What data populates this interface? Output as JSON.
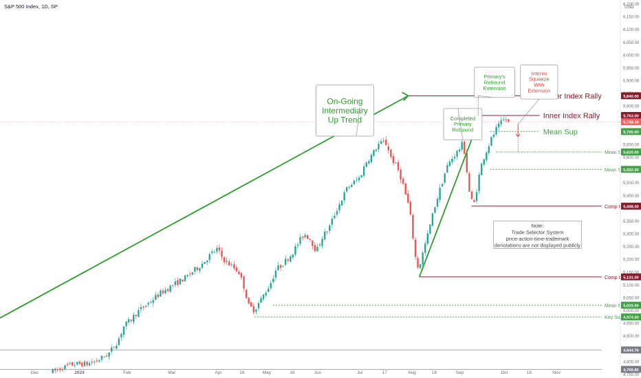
{
  "header": {
    "title": "S&P 500 Index, 1D, SP",
    "currency": "USD"
  },
  "colors": {
    "up": "#26a69a",
    "down": "#ef5350",
    "trend": "#2a9d2a",
    "resistance": "#8b1a2b",
    "support": "#43a047",
    "callout_red": "#e53935",
    "gray_line": "#9e9e9e",
    "current_price": "#f06262"
  },
  "y_axis": {
    "min": 4735,
    "max": 6215,
    "ticks": [
      "6,200.00",
      "6,150.00",
      "6,100.00",
      "6,050.00",
      "6,000.00",
      "5,950.00",
      "5,900.00",
      "5,850.00",
      "5,800.00",
      "5,750.00",
      "5,700.00",
      "5,650.00",
      "5,600.00",
      "5,550.00",
      "5,500.00",
      "5,450.00",
      "5,400.00",
      "5,350.00",
      "5,300.00",
      "5,250.00",
      "5,200.00",
      "5,150.00",
      "5,100.00",
      "5,050.00",
      "5,000.00",
      "4,950.00",
      "4,900.00",
      "4,850.00",
      "4,800.00",
      "4,750.00"
    ]
  },
  "x_axis": {
    "labels": [
      {
        "text": "Dec",
        "x": 0.056
      },
      {
        "text": "2024",
        "x": 0.128,
        "bold": true
      },
      {
        "text": "Feb",
        "x": 0.205
      },
      {
        "text": "Mar",
        "x": 0.277
      },
      {
        "text": "Apr",
        "x": 0.352
      },
      {
        "text": "16",
        "x": 0.39
      },
      {
        "text": "May",
        "x": 0.43
      },
      {
        "text": "16",
        "x": 0.471
      },
      {
        "text": "Jun",
        "x": 0.512
      },
      {
        "text": "Jul",
        "x": 0.58
      },
      {
        "text": "17",
        "x": 0.62
      },
      {
        "text": "Aug",
        "x": 0.664
      },
      {
        "text": "16",
        "x": 0.7
      },
      {
        "text": "Sep",
        "x": 0.741
      },
      {
        "text": "Oct",
        "x": 0.813
      },
      {
        "text": "16",
        "x": 0.853
      },
      {
        "text": "Nov",
        "x": 0.897
      }
    ]
  },
  "chart_data": {
    "type": "candlestick",
    "title": "S&P 500 Index, 1D, SP",
    "x_range": [
      0,
      1
    ],
    "ylim": [
      4735,
      6215
    ],
    "anchors": [
      [
        0.085,
        4760
      ],
      [
        0.1,
        4775
      ],
      [
        0.12,
        4790
      ],
      [
        0.14,
        4790
      ],
      [
        0.155,
        4800
      ],
      [
        0.175,
        4830
      ],
      [
        0.19,
        4880
      ],
      [
        0.2,
        4940
      ],
      [
        0.21,
        4960
      ],
      [
        0.22,
        4990
      ],
      [
        0.24,
        5030
      ],
      [
        0.26,
        5070
      ],
      [
        0.28,
        5100
      ],
      [
        0.3,
        5130
      ],
      [
        0.31,
        5150
      ],
      [
        0.325,
        5180
      ],
      [
        0.34,
        5220
      ],
      [
        0.35,
        5240
      ],
      [
        0.36,
        5200
      ],
      [
        0.37,
        5180
      ],
      [
        0.385,
        5150
      ],
      [
        0.395,
        5080
      ],
      [
        0.4,
        5020
      ],
      [
        0.41,
        5000
      ],
      [
        0.425,
        5060
      ],
      [
        0.435,
        5100
      ],
      [
        0.445,
        5160
      ],
      [
        0.455,
        5180
      ],
      [
        0.47,
        5220
      ],
      [
        0.48,
        5260
      ],
      [
        0.49,
        5300
      ],
      [
        0.5,
        5280
      ],
      [
        0.51,
        5230
      ],
      [
        0.52,
        5290
      ],
      [
        0.53,
        5320
      ],
      [
        0.54,
        5380
      ],
      [
        0.55,
        5430
      ],
      [
        0.56,
        5480
      ],
      [
        0.57,
        5500
      ],
      [
        0.58,
        5520
      ],
      [
        0.59,
        5580
      ],
      [
        0.6,
        5610
      ],
      [
        0.61,
        5650
      ],
      [
        0.62,
        5660
      ],
      [
        0.625,
        5640
      ],
      [
        0.63,
        5600
      ],
      [
        0.64,
        5560
      ],
      [
        0.645,
        5530
      ],
      [
        0.65,
        5490
      ],
      [
        0.655,
        5440
      ],
      [
        0.66,
        5400
      ],
      [
        0.665,
        5300
      ],
      [
        0.67,
        5200
      ],
      [
        0.675,
        5160
      ],
      [
        0.68,
        5210
      ],
      [
        0.69,
        5300
      ],
      [
        0.7,
        5400
      ],
      [
        0.71,
        5480
      ],
      [
        0.72,
        5560
      ],
      [
        0.73,
        5600
      ],
      [
        0.74,
        5630
      ],
      [
        0.745,
        5650
      ],
      [
        0.75,
        5610
      ],
      [
        0.755,
        5480
      ],
      [
        0.76,
        5430
      ],
      [
        0.765,
        5420
      ],
      [
        0.77,
        5500
      ],
      [
        0.775,
        5560
      ],
      [
        0.78,
        5600
      ],
      [
        0.79,
        5660
      ],
      [
        0.8,
        5710
      ],
      [
        0.81,
        5740
      ],
      [
        0.815,
        5750
      ],
      [
        0.82,
        5735
      ]
    ],
    "candle_range": [
      0.085,
      0.82
    ],
    "candle_step": 0.00395,
    "trend_line": {
      "from": [
        0,
        4970
      ],
      "to": [
        0.658,
        5840
      ],
      "name": "On-Going Intermediary Up Trend"
    },
    "rebound_line": {
      "from": [
        0.676,
        5131
      ],
      "to": [
        0.775,
        5763
      ]
    },
    "levels": [
      {
        "value": 5840,
        "label": "Outer Index Rally",
        "price": "5,840.00",
        "x1": 0.658,
        "x2": 0.87,
        "style": "solid",
        "color": "resistance",
        "size": "big"
      },
      {
        "value": 5763,
        "label": "Inner Index Rally",
        "price": "5,763.00",
        "x1": 0.775,
        "x2": 0.87,
        "style": "solid",
        "color": "resistance",
        "size": "big"
      },
      {
        "value": 5700,
        "label": "Mean Sup",
        "price": "5,700.00",
        "x1": 0.79,
        "x2": 0.87,
        "style": "dashed",
        "color": "support",
        "size": "big"
      },
      {
        "value": 5620,
        "label": "Mean Sup",
        "price": "5,620.00",
        "x1": 0.8,
        "x2": 0.97,
        "style": "dashed",
        "color": "support",
        "size": "small"
      },
      {
        "value": 5552,
        "label": "Mean Sup",
        "price": "5,552.00",
        "x1": 0.79,
        "x2": 0.97,
        "style": "dashed",
        "color": "support",
        "size": "small"
      },
      {
        "value": 5408,
        "label": "Comp Inner Index Dip",
        "price": "5,408.00",
        "x1": 0.76,
        "x2": 0.97,
        "style": "solid",
        "color": "resistance",
        "size": "small"
      },
      {
        "value": 5131,
        "label": "Comp Outer Index Dip",
        "price": "5,131.00",
        "x1": 0.676,
        "x2": 0.97,
        "style": "solid",
        "color": "resistance",
        "size": "small"
      },
      {
        "value": 5020,
        "label": "Mean Sup",
        "price": "5,020.00",
        "x1": 0.44,
        "x2": 0.97,
        "style": "dashed",
        "color": "support",
        "size": "small"
      },
      {
        "value": 4974,
        "label": "Key Sup",
        "price": "4,974.00",
        "x1": 0.41,
        "x2": 0.97,
        "style": "dashed",
        "color": "support",
        "size": "small"
      },
      {
        "value": 4844.76,
        "label": "",
        "price": "4,844.76",
        "x1": 0,
        "x2": 0.97,
        "style": "solid",
        "color": "gray_line",
        "size": "small"
      },
      {
        "value": 4768.85,
        "label": "",
        "price": "4,768.85",
        "x1": 0,
        "x2": 0.97,
        "style": "solid",
        "color": "gray_line",
        "size": "small"
      }
    ],
    "current_price": {
      "value": 5738.16,
      "label": "5,738.16"
    },
    "callouts": [
      {
        "text": [
          "On-Going",
          "Intermediary",
          "Up Trend"
        ],
        "style": "green-big",
        "box": [
          0.493,
          0.225,
          0.09,
          0.135
        ],
        "pointer": [
          0.58,
          5795
        ]
      },
      {
        "text": [
          "Primary's",
          "Rebound",
          "Extension"
        ],
        "style": "green",
        "box": [
          0.74,
          0.178,
          0.063,
          0.08
        ],
        "pointer": [
          0.771,
          5840
        ]
      },
      {
        "text": [
          "Completed",
          "Primary",
          "Rebound"
        ],
        "style": "green",
        "box": [
          0.692,
          0.287,
          0.06,
          0.083
        ],
        "pointer": [
          0.738,
          5790
        ]
      },
      {
        "text": [
          "Interim",
          "Squeeze",
          "With",
          "Extension"
        ],
        "style": "red",
        "box": [
          0.812,
          0.172,
          0.058,
          0.09
        ],
        "pointer": [
          0.835,
          5680
        ]
      }
    ],
    "note": {
      "text": [
        "Note:",
        "Trade Selector System",
        "price-action-time-trademark",
        "denotations are not displayed publicly"
      ],
      "box": [
        0.77,
        0.585,
        0.137,
        0.072
      ]
    }
  }
}
